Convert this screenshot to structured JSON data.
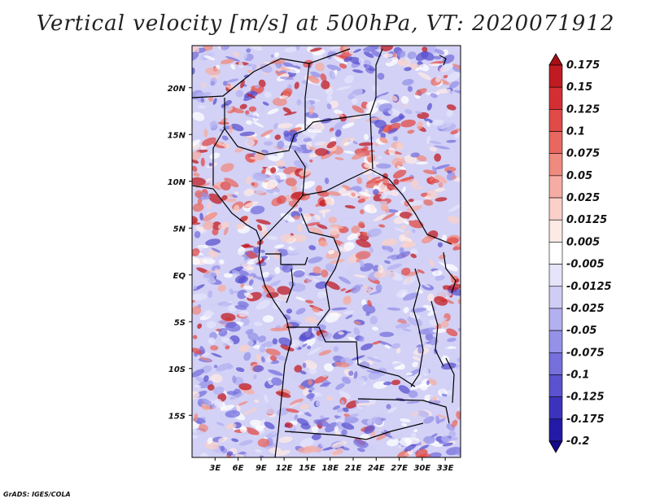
{
  "title": "Vertical velocity [m/s] at 500hPa, VT: 2020071912",
  "credit": "GrADS: IGES/COLA",
  "map": {
    "lat_labels": [
      "20N",
      "15N",
      "10N",
      "5N",
      "EQ",
      "5S",
      "10S",
      "15S"
    ],
    "lon_labels": [
      "3E",
      "6E",
      "9E",
      "12E",
      "15E",
      "18E",
      "21E",
      "24E",
      "27E",
      "30E",
      "33E"
    ],
    "lat_range": [
      -19.5,
      24.5
    ],
    "lon_range": [
      0,
      35
    ]
  },
  "colorbar": {
    "labels": [
      "0.175",
      "0.15",
      "0.125",
      "0.1",
      "0.075",
      "0.05",
      "0.025",
      "0.0125",
      "0.005",
      "-0.005",
      "-0.0125",
      "-0.025",
      "-0.05",
      "-0.075",
      "-0.1",
      "-0.125",
      "-0.175",
      "-0.2"
    ],
    "colors": [
      "#a50f15",
      "#c01b22",
      "#d32f33",
      "#e04a47",
      "#e8685f",
      "#ef8a7f",
      "#f5aca2",
      "#fad0c8",
      "#fdeae5",
      "#ffffff",
      "#e5e4fb",
      "#cfcdf6",
      "#b3b0f0",
      "#9691e8",
      "#7670dc",
      "#5a52cf",
      "#3c33bd",
      "#241aa8",
      "#14098a"
    ],
    "units": "m/s"
  }
}
